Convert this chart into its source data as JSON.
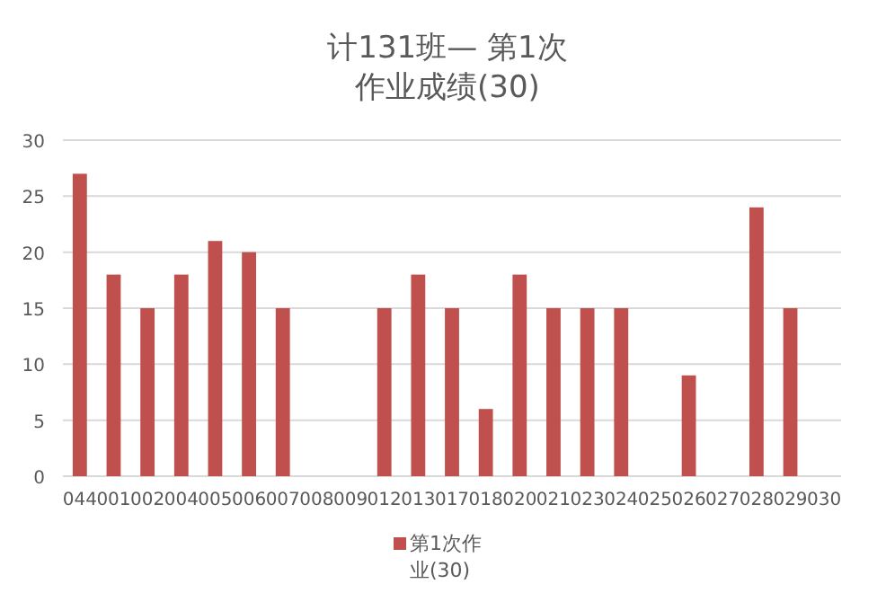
{
  "chart_data": {
    "type": "bar",
    "title": "计131班— 第1次作业成绩(30)",
    "categories": [
      "044",
      "001",
      "002",
      "004",
      "005",
      "006",
      "007",
      "008",
      "009",
      "012",
      "013",
      "017",
      "018",
      "020",
      "021",
      "023",
      "024",
      "025",
      "026",
      "027",
      "028",
      "029",
      "030"
    ],
    "series": [
      {
        "name": "第1次作业(30)",
        "color": "#c0504d",
        "values": [
          27,
          18,
          15,
          18,
          21,
          20,
          15,
          null,
          null,
          15,
          18,
          15,
          6,
          18,
          15,
          15,
          15,
          null,
          9,
          null,
          24,
          15,
          null
        ]
      }
    ],
    "ylim": [
      0,
      30
    ],
    "yticks": [
      0,
      5,
      10,
      15,
      20,
      25,
      30
    ],
    "grid": "y",
    "legend": "bottom"
  }
}
